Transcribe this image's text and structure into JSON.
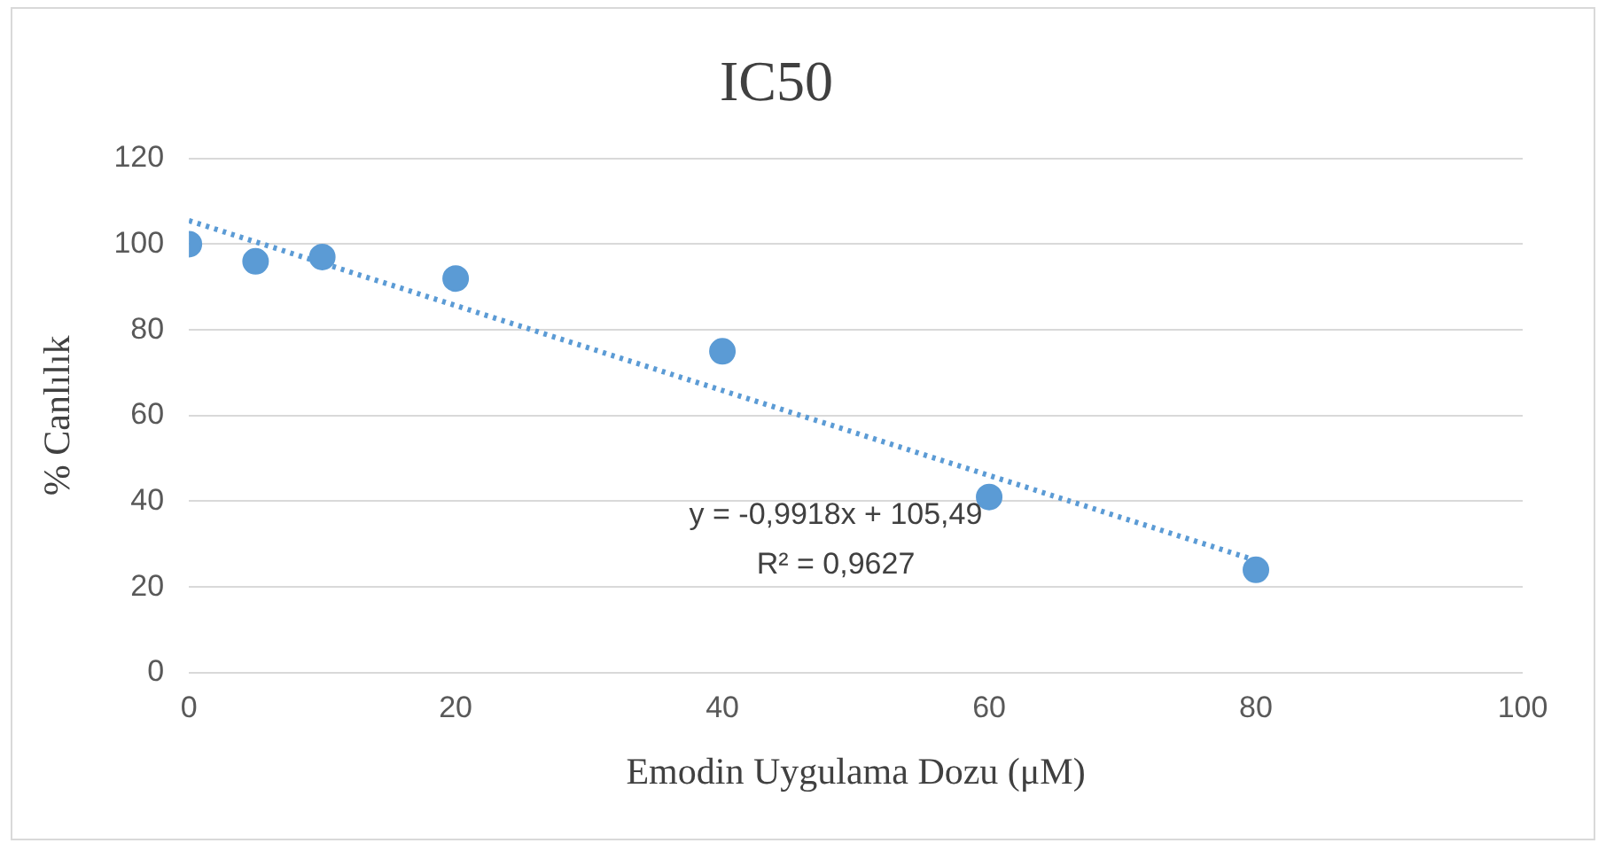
{
  "chart_data": {
    "type": "scatter",
    "title": "IC50",
    "xlabel": "Emodin Uygulama Dozu (μM)",
    "ylabel": "% Canlılık",
    "x": [
      0,
      5,
      10,
      20,
      40,
      60,
      80
    ],
    "series": [
      {
        "color": "#5b9bd5",
        "marker": "circle",
        "values": [
          100,
          96,
          97,
          92,
          75,
          41,
          24
        ]
      },
      {
        "type": "line",
        "color": "#5b9bd5",
        "marker": "none",
        "line_style": "dotted",
        "x": [
          0,
          80
        ],
        "values": [
          105.5,
          26.2
        ]
      }
    ],
    "xlim": [
      0,
      100
    ],
    "xticks": [
      0,
      20,
      40,
      60,
      80,
      100
    ],
    "ylim": [
      0,
      120
    ],
    "yticks": [
      0,
      20,
      40,
      60,
      80,
      100,
      120
    ],
    "grid": "y",
    "legend": false,
    "annotations": [
      "y = -0,9918x + 105,49",
      "R² = 0,9627"
    ]
  }
}
